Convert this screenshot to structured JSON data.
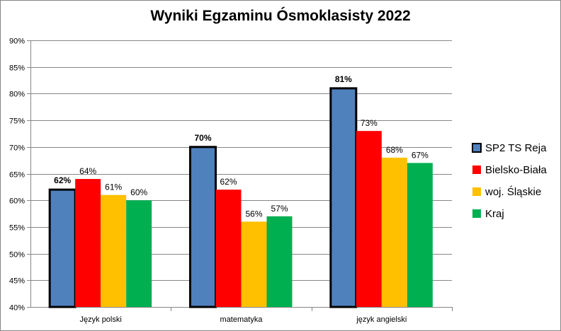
{
  "chart_data": {
    "type": "bar",
    "title": "Wyniki Egzaminu Ósmoklasisty 2022",
    "xlabel": "",
    "ylabel": "",
    "categories": [
      "Język polski",
      "matematyka",
      "język angielski"
    ],
    "ylim": [
      40,
      90
    ],
    "ytick_step": 5,
    "ytick_suffix": "%",
    "grid": true,
    "legend_position": "right",
    "series": [
      {
        "name": "SP2 TS Reja",
        "values": [
          62,
          70,
          81
        ],
        "color": "#4F81BD",
        "labels": [
          "62%",
          "70%",
          "81%"
        ],
        "emphasis": true
      },
      {
        "name": "Bielsko-Biała",
        "values": [
          64,
          62,
          73
        ],
        "color": "#FF0000",
        "labels": [
          "64%",
          "62%",
          "73%"
        ]
      },
      {
        "name": "woj. Śląskie",
        "values": [
          61,
          56,
          68
        ],
        "color": "#FFC000",
        "labels": [
          "61%",
          "56%",
          "68%"
        ]
      },
      {
        "name": "Kraj",
        "values": [
          60,
          57,
          67
        ],
        "color": "#00B050",
        "labels": [
          "60%",
          "57%",
          "67%"
        ]
      }
    ]
  }
}
